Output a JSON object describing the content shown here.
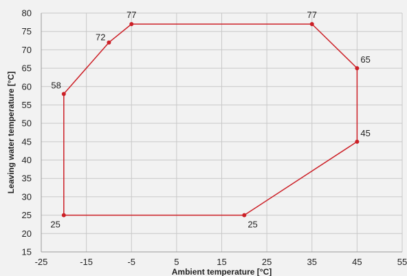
{
  "chart_data": {
    "type": "line",
    "title": "",
    "xlabel": "Ambient temperature [°C]",
    "ylabel": "Leaving water temperature [°C]",
    "xlim": [
      -25,
      55
    ],
    "ylim": [
      15,
      80
    ],
    "xticks": [
      -25,
      -15,
      -5,
      5,
      15,
      25,
      35,
      45,
      55
    ],
    "yticks": [
      15,
      20,
      25,
      30,
      35,
      40,
      45,
      50,
      55,
      60,
      65,
      70,
      75,
      80
    ],
    "grid": true,
    "closed": true,
    "series": [
      {
        "color": "#cc1f26",
        "points": [
          {
            "x": -20,
            "y": 58,
            "label": "58",
            "pos": "top-left"
          },
          {
            "x": -10,
            "y": 72,
            "label": "72",
            "pos": "left"
          },
          {
            "x": -5,
            "y": 77,
            "label": "77",
            "pos": "top"
          },
          {
            "x": 35,
            "y": 77,
            "label": "77",
            "pos": "top"
          },
          {
            "x": 45,
            "y": 65,
            "label": "65",
            "pos": "top-right"
          },
          {
            "x": 45,
            "y": 45,
            "label": "45",
            "pos": "top-right"
          },
          {
            "x": 20,
            "y": 25,
            "label": "25",
            "pos": "bottom-right"
          },
          {
            "x": -20,
            "y": 25,
            "label": "25",
            "pos": "bottom-left"
          }
        ]
      }
    ]
  }
}
